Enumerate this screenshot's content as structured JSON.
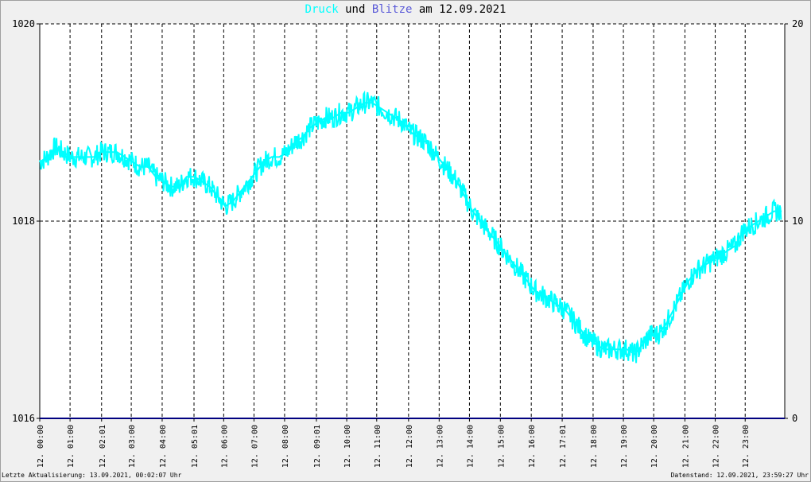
{
  "title": {
    "part1": "Druck",
    "part2": " und ",
    "part3": "Blitze",
    "part4": " am 12.09.2021"
  },
  "footer": {
    "left": "Letzte Aktualisierung: 13.09.2021, 00:02:07 Uhr",
    "right": "Datenstand: 12.09.2021, 23:59:27 Uhr"
  },
  "colors": {
    "background": "#f0f0f0",
    "plot_background": "#ffffff",
    "pressure": "#00ffff",
    "lightning": "#000080",
    "grid": "#000000"
  },
  "chart_data": {
    "type": "line",
    "grid": true,
    "x_tick_labels": [
      "12. 00:00",
      "12. 01:00",
      "12. 02:01",
      "12. 03:00",
      "12. 04:00",
      "12. 05:01",
      "12. 06:00",
      "12. 07:00",
      "12. 08:00",
      "12. 09:01",
      "12. 10:00",
      "12. 11:00",
      "12. 12:00",
      "12. 13:00",
      "12. 14:00",
      "12. 15:00",
      "12. 16:00",
      "12. 17:01",
      "12. 18:00",
      "12. 19:00",
      "12. 20:00",
      "12. 21:00",
      "12. 22:00",
      "12. 23:00"
    ],
    "x_tick_hours": [
      0,
      0.98,
      2.0,
      2.96,
      3.96,
      4.99,
      5.95,
      6.93,
      7.92,
      8.95,
      9.93,
      10.9,
      11.93,
      12.92,
      13.9,
      14.9,
      15.9,
      16.9,
      17.9,
      18.88,
      19.86,
      20.87,
      21.85,
      22.82
    ],
    "xlim_hours": [
      0,
      24.1
    ],
    "y_left": {
      "ylim": [
        1016,
        1020
      ],
      "tick_labels": [
        "1016",
        "1018",
        "1020"
      ],
      "tick_values": [
        1016,
        1018,
        1020
      ]
    },
    "y_right": {
      "ylim": [
        0,
        20
      ],
      "tick_labels": [
        "0",
        "10",
        "20"
      ],
      "tick_values": [
        0,
        10,
        20
      ]
    },
    "series": [
      {
        "name": "Druck",
        "axis": "left",
        "color": "#00ffff",
        "points": [
          [
            0,
            1018.6
          ],
          [
            0.25,
            1018.65
          ],
          [
            0.5,
            1018.75
          ],
          [
            0.75,
            1018.7
          ],
          [
            1,
            1018.65
          ],
          [
            1.25,
            1018.65
          ],
          [
            1.5,
            1018.65
          ],
          [
            1.75,
            1018.65
          ],
          [
            2,
            1018.7
          ],
          [
            2.25,
            1018.7
          ],
          [
            2.5,
            1018.7
          ],
          [
            2.75,
            1018.65
          ],
          [
            3,
            1018.6
          ],
          [
            3.25,
            1018.55
          ],
          [
            3.5,
            1018.55
          ],
          [
            3.75,
            1018.45
          ],
          [
            4,
            1018.4
          ],
          [
            4.25,
            1018.35
          ],
          [
            4.5,
            1018.35
          ],
          [
            4.75,
            1018.45
          ],
          [
            5,
            1018.45
          ],
          [
            5.25,
            1018.4
          ],
          [
            5.5,
            1018.35
          ],
          [
            5.75,
            1018.25
          ],
          [
            6,
            1018.15
          ],
          [
            6.25,
            1018.2
          ],
          [
            6.5,
            1018.3
          ],
          [
            6.75,
            1018.4
          ],
          [
            7,
            1018.5
          ],
          [
            7.25,
            1018.6
          ],
          [
            7.5,
            1018.65
          ],
          [
            7.75,
            1018.65
          ],
          [
            8,
            1018.7
          ],
          [
            8.25,
            1018.8
          ],
          [
            8.5,
            1018.85
          ],
          [
            8.75,
            1018.95
          ],
          [
            9,
            1019.0
          ],
          [
            9.25,
            1019.05
          ],
          [
            9.5,
            1019.05
          ],
          [
            9.75,
            1019.1
          ],
          [
            10,
            1019.1
          ],
          [
            10.25,
            1019.15
          ],
          [
            10.5,
            1019.2
          ],
          [
            10.75,
            1019.2
          ],
          [
            11,
            1019.15
          ],
          [
            11.25,
            1019.1
          ],
          [
            11.5,
            1019.05
          ],
          [
            11.75,
            1019.0
          ],
          [
            12,
            1018.9
          ],
          [
            12.25,
            1018.85
          ],
          [
            12.5,
            1018.8
          ],
          [
            12.75,
            1018.7
          ],
          [
            13,
            1018.6
          ],
          [
            13.25,
            1018.5
          ],
          [
            13.5,
            1018.4
          ],
          [
            13.75,
            1018.25
          ],
          [
            14,
            1018.1
          ],
          [
            14.25,
            1018.0
          ],
          [
            14.5,
            1017.9
          ],
          [
            14.75,
            1017.8
          ],
          [
            15,
            1017.7
          ],
          [
            15.25,
            1017.6
          ],
          [
            15.5,
            1017.5
          ],
          [
            15.75,
            1017.4
          ],
          [
            16,
            1017.3
          ],
          [
            16.25,
            1017.25
          ],
          [
            16.5,
            1017.2
          ],
          [
            16.75,
            1017.15
          ],
          [
            17,
            1017.1
          ],
          [
            17.25,
            1017.0
          ],
          [
            17.5,
            1016.9
          ],
          [
            17.75,
            1016.8
          ],
          [
            18,
            1016.75
          ],
          [
            18.25,
            1016.7
          ],
          [
            18.5,
            1016.7
          ],
          [
            18.75,
            1016.7
          ],
          [
            19,
            1016.7
          ],
          [
            19.25,
            1016.65
          ],
          [
            19.5,
            1016.75
          ],
          [
            19.75,
            1016.85
          ],
          [
            20,
            1016.85
          ],
          [
            20.25,
            1016.95
          ],
          [
            20.5,
            1017.1
          ],
          [
            20.75,
            1017.25
          ],
          [
            21,
            1017.4
          ],
          [
            21.25,
            1017.5
          ],
          [
            21.5,
            1017.55
          ],
          [
            21.75,
            1017.6
          ],
          [
            22,
            1017.65
          ],
          [
            22.25,
            1017.7
          ],
          [
            22.5,
            1017.75
          ],
          [
            22.75,
            1017.9
          ],
          [
            23,
            1017.95
          ],
          [
            23.25,
            1018.0
          ],
          [
            23.5,
            1018.05
          ],
          [
            23.75,
            1018.1
          ],
          [
            24,
            1018.1
          ]
        ]
      },
      {
        "name": "Blitze",
        "axis": "right",
        "color": "#000080",
        "points": [
          [
            0,
            0
          ],
          [
            24.1,
            0
          ]
        ]
      }
    ]
  }
}
